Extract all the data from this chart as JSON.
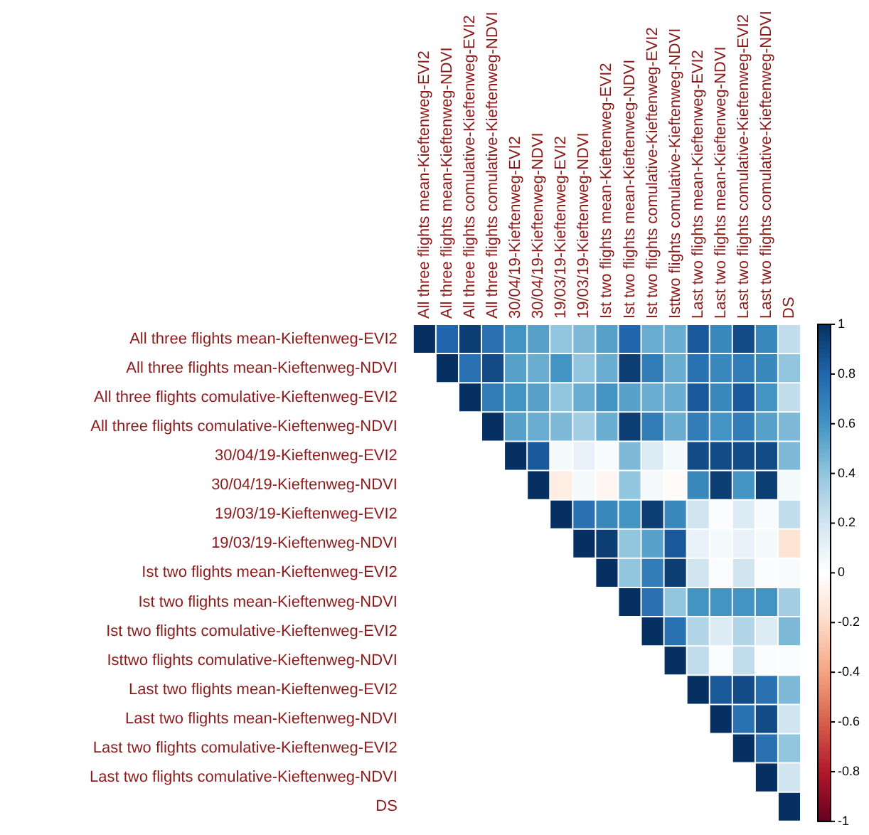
{
  "chart_data": {
    "type": "heatmap",
    "categories": [
      "All three flights mean-Kieftenweg-EVI2",
      "All three flights mean-Kieftenweg-NDVI",
      "All three flights comulative-Kieftenweg-EVI2",
      "All three flights comulative-Kieftenweg-NDVI",
      "30/04/19-Kieftenweg-EVI2",
      "30/04/19-Kieftenweg-NDVI",
      "19/03/19-Kieftenweg-EVI2",
      "19/03/19-Kieftenweg-NDVI",
      "Ist two flights mean-Kieftenweg-EVI2",
      "Ist two flights mean-Kieftenweg-NDVI",
      "Ist two flights comulative-Kieftenweg-EVI2",
      "Isttwo flights comulative-Kieftenweg-NDVI",
      "Last two flights mean-Kieftenweg-EVI2",
      "Last two flights mean-Kieftenweg-NDVI",
      "Last two flights comulative-Kieftenweg-EVI2",
      "Last two flights comulative-Kieftenweg-NDVI",
      "DS"
    ],
    "y_categories": [
      "All three flights mean-Kieftenweg-EVI2",
      "All three flights mean-Kieftenweg-NDVI",
      "All three flights comulative-Kieftenweg-EVI2",
      "All three flights comulative-Kieftenweg-NDVI",
      "30/04/19-Kieftenweg-EVI2",
      "30/04/19-Kieftenweg-NDVI",
      "19/03/19-Kieftenweg-EVI2",
      "19/03/19-Kieftenweg-NDVI",
      "Ist two flights mean-Kieftenweg-EVI2",
      "Ist two flights mean-Kieftenweg-NDVI",
      "Ist two flights comulative-Kieftenweg-EVI2",
      "Isttwo flights comulative-Kieftenweg-NDVI",
      "Last two flights mean-Kieftenweg-EVI2",
      "Last two flights mean-Kieftenweg-NDVI",
      "Last two flights comulative-Kieftenweg-EVI2",
      "Last two flights comulative-Kieftenweg-NDVI",
      "DS"
    ],
    "cells": [
      [
        1,
        0.8,
        0.95,
        0.75,
        0.6,
        0.55,
        0.4,
        0.45,
        0.55,
        0.8,
        0.5,
        0.5,
        0.85,
        0.65,
        0.9,
        0.65,
        0.25
      ],
      [
        null,
        1,
        0.75,
        0.9,
        0.55,
        0.5,
        0.6,
        0.4,
        0.5,
        0.95,
        0.7,
        0.5,
        0.75,
        0.65,
        0.7,
        0.65,
        0.4
      ],
      [
        null,
        null,
        1,
        0.7,
        0.6,
        0.55,
        0.4,
        0.5,
        0.6,
        0.55,
        0.5,
        0.5,
        0.85,
        0.65,
        0.85,
        0.6,
        0.25
      ],
      [
        null,
        null,
        null,
        1,
        0.55,
        0.5,
        0.45,
        0.35,
        0.5,
        0.95,
        0.7,
        0.5,
        0.7,
        0.6,
        0.7,
        0.55,
        0.45
      ],
      [
        null,
        null,
        null,
        null,
        1,
        0.85,
        0.05,
        0.1,
        0.03,
        0.45,
        0.15,
        0.05,
        0.9,
        0.9,
        0.9,
        0.9,
        0.45
      ],
      [
        null,
        null,
        null,
        null,
        null,
        1,
        -0.1,
        0.05,
        -0.05,
        0.4,
        0.05,
        -0.03,
        0.65,
        0.95,
        0.6,
        0.95,
        0.05
      ],
      [
        null,
        null,
        null,
        null,
        null,
        null,
        1,
        0.75,
        0.65,
        0.6,
        0.95,
        0.65,
        0.2,
        0.02,
        0.15,
        0.03,
        0.25
      ],
      [
        null,
        null,
        null,
        null,
        null,
        null,
        null,
        1,
        0.95,
        0.4,
        0.55,
        0.85,
        0.1,
        0.05,
        0.1,
        0.05,
        -0.15
      ],
      [
        null,
        null,
        null,
        null,
        null,
        null,
        null,
        null,
        1,
        0.4,
        0.7,
        0.95,
        0.2,
        0.02,
        0.2,
        0.02,
        0.03
      ],
      [
        null,
        null,
        null,
        null,
        null,
        null,
        null,
        null,
        null,
        1,
        0.75,
        0.4,
        0.6,
        0.6,
        0.6,
        0.6,
        0.35
      ],
      [
        null,
        null,
        null,
        null,
        null,
        null,
        null,
        null,
        null,
        null,
        1,
        0.75,
        0.3,
        0.15,
        0.3,
        0.15,
        0.45
      ],
      [
        null,
        null,
        null,
        null,
        null,
        null,
        null,
        null,
        null,
        null,
        null,
        1,
        0.25,
        0.02,
        0.25,
        0.02,
        0.02
      ],
      [
        null,
        null,
        null,
        null,
        null,
        null,
        null,
        null,
        null,
        null,
        null,
        null,
        1,
        0.85,
        0.9,
        0.75,
        0.45
      ],
      [
        null,
        null,
        null,
        null,
        null,
        null,
        null,
        null,
        null,
        null,
        null,
        null,
        null,
        1,
        0.75,
        0.9,
        0.2
      ],
      [
        null,
        null,
        null,
        null,
        null,
        null,
        null,
        null,
        null,
        null,
        null,
        null,
        null,
        null,
        1,
        0.75,
        0.4
      ],
      [
        null,
        null,
        null,
        null,
        null,
        null,
        null,
        null,
        null,
        null,
        null,
        null,
        null,
        null,
        null,
        1,
        0.2
      ],
      [
        null,
        null,
        null,
        null,
        null,
        null,
        null,
        null,
        null,
        null,
        null,
        null,
        null,
        null,
        null,
        null,
        1
      ]
    ],
    "clim": [
      -1,
      1
    ],
    "cticks": [
      -1,
      -0.8,
      -0.6,
      -0.4,
      -0.2,
      0,
      0.2,
      0.4,
      0.6,
      0.8,
      1
    ]
  }
}
